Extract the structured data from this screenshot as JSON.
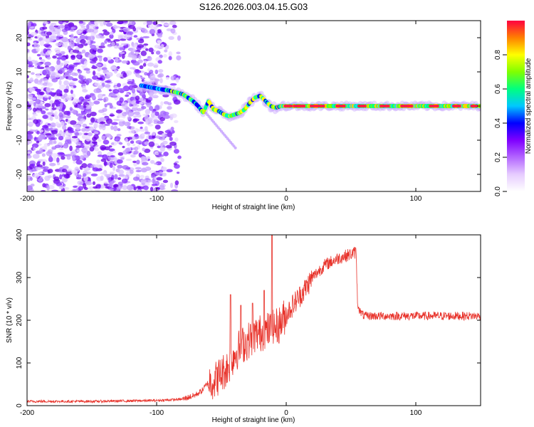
{
  "chart_data": [
    {
      "type": "heatmap",
      "title": "S126.2026.003.04.15.G03",
      "xlabel": "Height of straight line (km)",
      "ylabel": "Frequency (Hz)",
      "xlim": [
        -200,
        150
      ],
      "ylim": [
        -25,
        25
      ],
      "x_ticks": [
        -200,
        -100,
        0,
        100
      ],
      "y_ticks": [
        -20,
        -10,
        0,
        10,
        20
      ],
      "colorbar": {
        "label": "Normalized spectral amplitude",
        "range": [
          0,
          1
        ],
        "ticks": [
          0.0,
          0.2,
          0.4,
          0.6,
          0.8
        ],
        "tick_labels": [
          "0.0",
          "0.2",
          "0.4",
          "0.6",
          "0.8"
        ],
        "colormap": [
          "#ffffff",
          "#e6ccff",
          "#b366ff",
          "#7f00ff",
          "#0000ff",
          "#00c8ff",
          "#00ff80",
          "#80ff00",
          "#ffff00",
          "#ff8000",
          "#ff0040"
        ]
      },
      "ridge": {
        "x": [
          -112,
          -105,
          -98,
          -90,
          -85,
          -80,
          -76,
          -72,
          -68,
          -64,
          -60,
          -56,
          -52,
          -48,
          -44,
          -40,
          -36,
          -32,
          -28,
          -24,
          -20,
          -16,
          -12,
          -8,
          -4,
          0,
          50,
          100,
          150
        ],
        "y": [
          6,
          5.5,
          5,
          4.5,
          4,
          3.5,
          2.5,
          1.5,
          0,
          -2,
          1.5,
          -1,
          -1.5,
          -2.5,
          -3,
          -2.5,
          -2,
          -1,
          1,
          2.5,
          3,
          1.5,
          0,
          -0.5,
          0,
          0,
          0,
          0,
          0
        ]
      }
    },
    {
      "type": "line",
      "xlabel": "Height of straight line (km)",
      "ylabel": "SNR (10 * v/v)",
      "xlim": [
        -200,
        150
      ],
      "ylim": [
        0,
        400
      ],
      "x_ticks": [
        -200,
        -100,
        0,
        100
      ],
      "y_ticks": [
        0,
        100,
        200,
        300,
        400
      ],
      "color": "#e8322a",
      "series": [
        {
          "name": "SNR",
          "x": [
            -200,
            -150,
            -100,
            -80,
            -70,
            -65,
            -60,
            -55,
            -50,
            -45,
            -40,
            -35,
            -30,
            -25,
            -20,
            -15,
            -10,
            -5,
            0,
            5,
            10,
            15,
            20,
            30,
            40,
            50,
            54,
            55,
            57,
            60,
            80,
            100,
            120,
            150
          ],
          "y": [
            10,
            10,
            12,
            15,
            25,
            35,
            55,
            60,
            75,
            90,
            120,
            140,
            150,
            165,
            170,
            175,
            180,
            190,
            215,
            235,
            255,
            275,
            300,
            330,
            345,
            355,
            360,
            240,
            220,
            210,
            210,
            210,
            210,
            210
          ]
        }
      ],
      "spikes": [
        {
          "x": -43,
          "y": 260
        },
        {
          "x": -35,
          "y": 235
        },
        {
          "x": -26,
          "y": 240
        },
        {
          "x": -17,
          "y": 270
        },
        {
          "x": -11,
          "y": 405
        }
      ]
    }
  ]
}
